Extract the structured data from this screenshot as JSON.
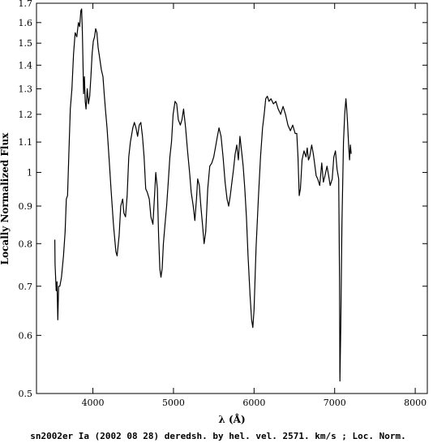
{
  "chart_data": {
    "type": "line",
    "title": "",
    "caption": "sn2002er Ia (2002 08 28) deredsh. by hel. vel.  2571. km/s ;  Loc. Norm.",
    "xlabel": "λ (Å)",
    "ylabel": "Locally Normalized Flux",
    "xlim": [
      3300,
      8150
    ],
    "ylim": [
      0.5,
      1.7
    ],
    "yscale": "log",
    "grid": false,
    "xticks": [
      4000,
      5000,
      6000,
      7000,
      8000
    ],
    "xtick_labels": [
      "4000",
      "5000",
      "6000",
      "7000",
      "8000"
    ],
    "yticks": [
      0.5,
      0.6,
      0.7,
      0.8,
      0.9,
      1.0,
      1.1,
      1.2,
      1.3,
      1.4,
      1.5,
      1.6,
      1.7
    ],
    "ytick_labels": [
      "0.5",
      "0.6",
      "0.7",
      "0.8",
      "0.9",
      "1",
      "1.1",
      "1.2",
      "1.3",
      "1.4",
      "1.5",
      "1.6",
      "1.7"
    ],
    "series": [
      {
        "color": "#000000",
        "points": [
          [
            3527,
            0.81
          ],
          [
            3530,
            0.75
          ],
          [
            3545,
            0.69
          ],
          [
            3555,
            0.71
          ],
          [
            3565,
            0.63
          ],
          [
            3575,
            0.7
          ],
          [
            3590,
            0.7
          ],
          [
            3610,
            0.72
          ],
          [
            3635,
            0.77
          ],
          [
            3655,
            0.83
          ],
          [
            3670,
            0.92
          ],
          [
            3685,
            0.93
          ],
          [
            3700,
            1.05
          ],
          [
            3720,
            1.22
          ],
          [
            3740,
            1.3
          ],
          [
            3760,
            1.45
          ],
          [
            3780,
            1.55
          ],
          [
            3800,
            1.53
          ],
          [
            3820,
            1.6
          ],
          [
            3835,
            1.58
          ],
          [
            3850,
            1.66
          ],
          [
            3860,
            1.67
          ],
          [
            3870,
            1.55
          ],
          [
            3885,
            1.28
          ],
          [
            3895,
            1.35
          ],
          [
            3905,
            1.25
          ],
          [
            3915,
            1.22
          ],
          [
            3930,
            1.3
          ],
          [
            3945,
            1.24
          ],
          [
            3960,
            1.27
          ],
          [
            3975,
            1.35
          ],
          [
            3990,
            1.45
          ],
          [
            4005,
            1.51
          ],
          [
            4020,
            1.53
          ],
          [
            4035,
            1.57
          ],
          [
            4050,
            1.55
          ],
          [
            4065,
            1.48
          ],
          [
            4085,
            1.43
          ],
          [
            4105,
            1.38
          ],
          [
            4125,
            1.35
          ],
          [
            4140,
            1.28
          ],
          [
            4155,
            1.22
          ],
          [
            4175,
            1.15
          ],
          [
            4200,
            1.05
          ],
          [
            4225,
            0.95
          ],
          [
            4255,
            0.85
          ],
          [
            4285,
            0.78
          ],
          [
            4300,
            0.77
          ],
          [
            4325,
            0.82
          ],
          [
            4345,
            0.9
          ],
          [
            4370,
            0.92
          ],
          [
            4385,
            0.88
          ],
          [
            4405,
            0.87
          ],
          [
            4425,
            0.93
          ],
          [
            4445,
            1.05
          ],
          [
            4465,
            1.1
          ],
          [
            4495,
            1.15
          ],
          [
            4515,
            1.17
          ],
          [
            4535,
            1.15
          ],
          [
            4555,
            1.12
          ],
          [
            4575,
            1.16
          ],
          [
            4595,
            1.17
          ],
          [
            4615,
            1.12
          ],
          [
            4635,
            1.05
          ],
          [
            4655,
            0.95
          ],
          [
            4675,
            0.94
          ],
          [
            4700,
            0.92
          ],
          [
            4720,
            0.87
          ],
          [
            4745,
            0.85
          ],
          [
            4765,
            0.93
          ],
          [
            4780,
            1.0
          ],
          [
            4800,
            0.95
          ],
          [
            4815,
            0.82
          ],
          [
            4830,
            0.74
          ],
          [
            4845,
            0.72
          ],
          [
            4860,
            0.74
          ],
          [
            4875,
            0.8
          ],
          [
            4895,
            0.85
          ],
          [
            4915,
            0.9
          ],
          [
            4935,
            0.97
          ],
          [
            4955,
            1.05
          ],
          [
            4975,
            1.1
          ],
          [
            4995,
            1.2
          ],
          [
            5020,
            1.25
          ],
          [
            5040,
            1.24
          ],
          [
            5060,
            1.18
          ],
          [
            5085,
            1.16
          ],
          [
            5105,
            1.18
          ],
          [
            5125,
            1.22
          ],
          [
            5150,
            1.15
          ],
          [
            5175,
            1.07
          ],
          [
            5200,
            1.0
          ],
          [
            5220,
            0.94
          ],
          [
            5245,
            0.9
          ],
          [
            5265,
            0.86
          ],
          [
            5285,
            0.92
          ],
          [
            5300,
            0.98
          ],
          [
            5320,
            0.96
          ],
          [
            5340,
            0.9
          ],
          [
            5360,
            0.85
          ],
          [
            5380,
            0.8
          ],
          [
            5400,
            0.83
          ],
          [
            5425,
            0.95
          ],
          [
            5450,
            1.02
          ],
          [
            5475,
            1.03
          ],
          [
            5500,
            1.05
          ],
          [
            5520,
            1.08
          ],
          [
            5545,
            1.12
          ],
          [
            5565,
            1.15
          ],
          [
            5590,
            1.12
          ],
          [
            5615,
            1.05
          ],
          [
            5640,
            0.97
          ],
          [
            5665,
            0.92
          ],
          [
            5685,
            0.9
          ],
          [
            5705,
            0.93
          ],
          [
            5725,
            0.97
          ],
          [
            5745,
            1.01
          ],
          [
            5765,
            1.06
          ],
          [
            5785,
            1.09
          ],
          [
            5805,
            1.04
          ],
          [
            5825,
            1.12
          ],
          [
            5845,
            1.07
          ],
          [
            5865,
            1.02
          ],
          [
            5885,
            0.95
          ],
          [
            5905,
            0.87
          ],
          [
            5925,
            0.77
          ],
          [
            5950,
            0.68
          ],
          [
            5970,
            0.63
          ],
          [
            5985,
            0.615
          ],
          [
            6000,
            0.65
          ],
          [
            6025,
            0.79
          ],
          [
            6055,
            0.93
          ],
          [
            6080,
            1.05
          ],
          [
            6105,
            1.15
          ],
          [
            6125,
            1.2
          ],
          [
            6145,
            1.26
          ],
          [
            6165,
            1.27
          ],
          [
            6185,
            1.25
          ],
          [
            6210,
            1.26
          ],
          [
            6240,
            1.24
          ],
          [
            6270,
            1.25
          ],
          [
            6300,
            1.22
          ],
          [
            6330,
            1.2
          ],
          [
            6360,
            1.23
          ],
          [
            6390,
            1.2
          ],
          [
            6420,
            1.16
          ],
          [
            6450,
            1.14
          ],
          [
            6480,
            1.16
          ],
          [
            6510,
            1.13
          ],
          [
            6530,
            1.13
          ],
          [
            6545,
            1.05
          ],
          [
            6560,
            0.93
          ],
          [
            6575,
            0.95
          ],
          [
            6595,
            1.04
          ],
          [
            6620,
            1.07
          ],
          [
            6645,
            1.05
          ],
          [
            6660,
            1.08
          ],
          [
            6675,
            1.04
          ],
          [
            6690,
            1.05
          ],
          [
            6715,
            1.09
          ],
          [
            6735,
            1.06
          ],
          [
            6750,
            1.03
          ],
          [
            6770,
            0.99
          ],
          [
            6790,
            0.98
          ],
          [
            6815,
            0.96
          ],
          [
            6840,
            1.03
          ],
          [
            6860,
            0.97
          ],
          [
            6880,
            0.99
          ],
          [
            6905,
            1.02
          ],
          [
            6925,
            0.99
          ],
          [
            6945,
            0.96
          ],
          [
            6970,
            0.98
          ],
          [
            6990,
            1.05
          ],
          [
            7010,
            1.07
          ],
          [
            7030,
            1.01
          ],
          [
            7050,
            0.98
          ],
          [
            7060,
            0.72
          ],
          [
            7065,
            0.52
          ],
          [
            7075,
            0.61
          ],
          [
            7090,
            0.85
          ],
          [
            7110,
            1.1
          ],
          [
            7125,
            1.2
          ],
          [
            7140,
            1.26
          ],
          [
            7150,
            1.22
          ],
          [
            7160,
            1.17
          ],
          [
            7175,
            1.08
          ],
          [
            7185,
            1.04
          ],
          [
            7195,
            1.09
          ],
          [
            7205,
            1.06
          ]
        ]
      }
    ]
  }
}
